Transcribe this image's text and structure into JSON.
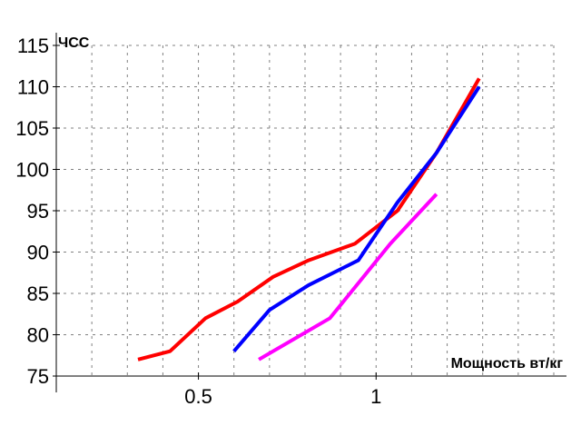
{
  "chart_data": {
    "type": "line",
    "title": "",
    "xlabel": "Мощность вт/кг",
    "ylabel": "ЧСС",
    "xlim": [
      0.1,
      1.5
    ],
    "ylim": [
      75,
      115
    ],
    "grid": true,
    "x_ticks": [
      {
        "value": 0.5,
        "label": "0.5"
      },
      {
        "value": 1.0,
        "label": "1"
      }
    ],
    "y_ticks": [
      {
        "value": 75,
        "label": "75"
      },
      {
        "value": 80,
        "label": "80"
      },
      {
        "value": 85,
        "label": "85"
      },
      {
        "value": 90,
        "label": "90"
      },
      {
        "value": 95,
        "label": "95"
      },
      {
        "value": 100,
        "label": "100"
      },
      {
        "value": 105,
        "label": "105"
      },
      {
        "value": 110,
        "label": "110"
      },
      {
        "value": 115,
        "label": "115"
      }
    ],
    "x_grid_step": 0.1,
    "y_grid_step": 5,
    "series": [
      {
        "color": "#ff0000",
        "points": [
          [
            0.33,
            77
          ],
          [
            0.42,
            78
          ],
          [
            0.52,
            82
          ],
          [
            0.61,
            84
          ],
          [
            0.71,
            87
          ],
          [
            0.81,
            89
          ],
          [
            0.94,
            91
          ],
          [
            1.06,
            95
          ],
          [
            1.17,
            102
          ],
          [
            1.29,
            111
          ]
        ]
      },
      {
        "color": "#0000ff",
        "points": [
          [
            0.6,
            78
          ],
          [
            0.7,
            83
          ],
          [
            0.81,
            86
          ],
          [
            0.95,
            89
          ],
          [
            1.06,
            96
          ],
          [
            1.17,
            102
          ],
          [
            1.29,
            110
          ]
        ]
      },
      {
        "color": "#ff00ff",
        "points": [
          [
            0.67,
            77
          ],
          [
            0.87,
            82
          ],
          [
            1.04,
            91
          ],
          [
            1.17,
            97
          ]
        ]
      }
    ]
  }
}
